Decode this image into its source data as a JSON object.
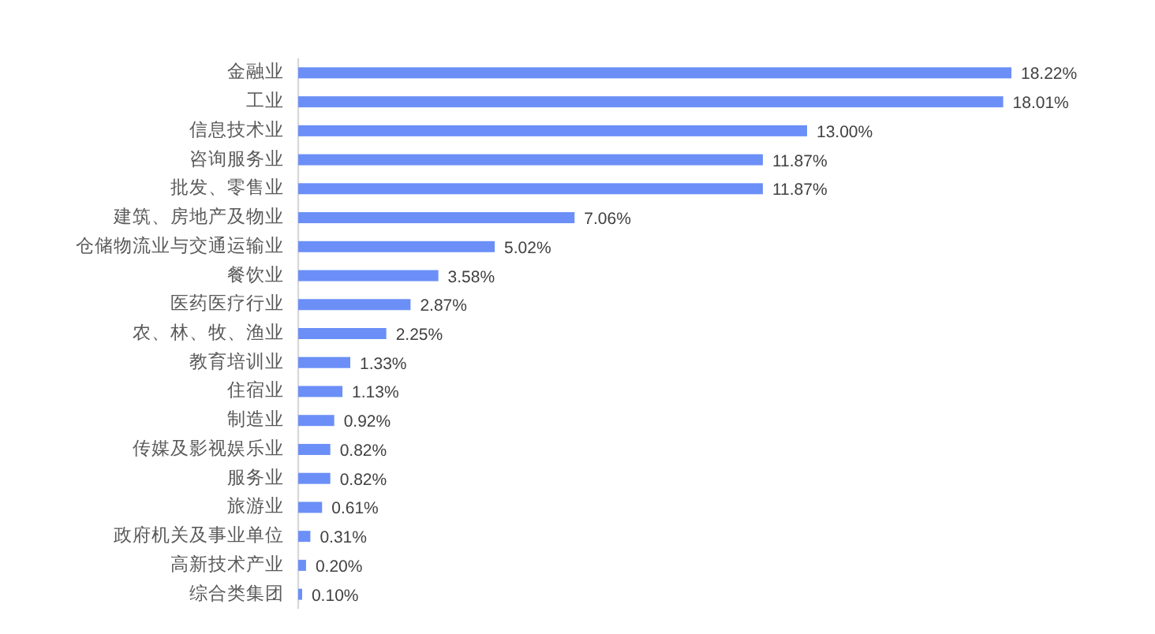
{
  "chart_data": {
    "type": "bar",
    "orientation": "horizontal",
    "tick_labels": "y",
    "color": "#6b8ff7",
    "categories": [
      "金融业",
      "工业",
      "信息技术业",
      "咨询服务业",
      "批发、零售业",
      "建筑、房地产及物业",
      "仓储物流业与交通运输业",
      "餐饮业",
      "医药医疗行业",
      "农、林、牧、渔业",
      "教育培训业",
      "住宿业",
      "制造业",
      "传媒及影视娱乐业",
      "服务业",
      "旅游业",
      "政府机关及事业单位",
      "高新技术产业",
      "综合类集团"
    ],
    "values": [
      18.22,
      18.01,
      13.0,
      11.87,
      11.87,
      7.06,
      5.02,
      3.58,
      2.87,
      2.25,
      1.33,
      1.13,
      0.92,
      0.82,
      0.82,
      0.61,
      0.31,
      0.2,
      0.1
    ],
    "value_labels": [
      "18.22%",
      "18.01%",
      "13.00%",
      "11.87%",
      "11.87%",
      "7.06%",
      "5.02%",
      "3.58%",
      "2.87%",
      "2.25%",
      "1.33%",
      "1.13%",
      "0.92%",
      "0.82%",
      "0.82%",
      "0.61%",
      "0.31%",
      "0.20%",
      "0.10%"
    ]
  }
}
